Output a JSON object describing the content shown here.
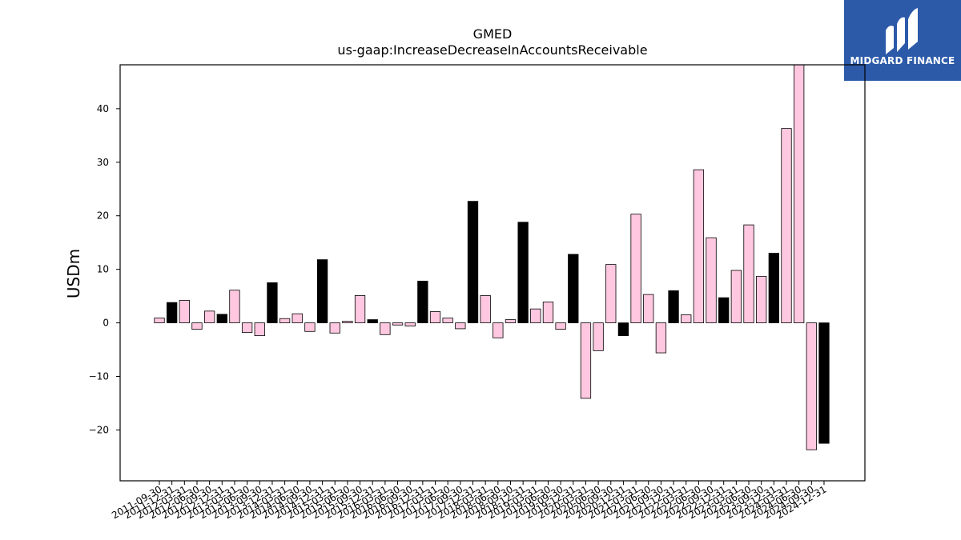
{
  "logo": {
    "text": "MIDGARD FINANCE",
    "bg_color": "#2c5aa9"
  },
  "chart_data": {
    "type": "bar",
    "title": "GMED",
    "subtitle": "us-gaap:IncreaseDecreaseInAccountsReceivable",
    "ylabel": "USDm",
    "xlabel": "",
    "ylim": [
      -29.5,
      48.2
    ],
    "yticks": [
      -20,
      -10,
      0,
      10,
      20,
      30,
      40
    ],
    "colors": {
      "default": "#ffc8e0",
      "highlight": "#000000",
      "edge": "#000000"
    },
    "categories": [
      "2011-09-30",
      "2011-12-31",
      "2012-03-31",
      "2012-06-30",
      "2012-09-30",
      "2012-12-31",
      "2013-03-31",
      "2013-06-30",
      "2013-09-30",
      "2013-12-31",
      "2014-03-31",
      "2014-06-30",
      "2014-09-30",
      "2014-12-31",
      "2015-03-31",
      "2015-06-30",
      "2015-09-30",
      "2015-12-31",
      "2016-03-31",
      "2016-06-30",
      "2016-09-30",
      "2016-12-31",
      "2017-03-31",
      "2017-06-30",
      "2017-09-30",
      "2017-12-31",
      "2018-03-31",
      "2018-06-30",
      "2018-09-30",
      "2018-12-31",
      "2019-03-31",
      "2019-06-30",
      "2019-09-30",
      "2019-12-31",
      "2020-03-31",
      "2020-06-30",
      "2020-09-30",
      "2020-12-31",
      "2021-03-31",
      "2021-06-30",
      "2021-09-30",
      "2021-12-31",
      "2022-03-31",
      "2022-06-30",
      "2022-09-30",
      "2022-12-31",
      "2023-03-31",
      "2023-06-30",
      "2023-09-30",
      "2023-12-31",
      "2024-03-31",
      "2024-06-30",
      "2024-09-30",
      "2024-12-31"
    ],
    "values": [
      0.9,
      3.8,
      4.2,
      -1.2,
      2.2,
      1.6,
      6.1,
      -1.8,
      -2.4,
      7.5,
      0.8,
      1.7,
      -1.6,
      11.8,
      -1.9,
      0.3,
      5.1,
      0.6,
      -2.2,
      -0.4,
      -0.6,
      7.8,
      2.1,
      0.9,
      -1.1,
      22.7,
      5.1,
      -2.8,
      0.6,
      18.8,
      2.6,
      3.9,
      -1.2,
      12.8,
      -14.1,
      -5.2,
      10.9,
      -2.4,
      20.3,
      5.3,
      -5.6,
      6.0,
      1.5,
      28.6,
      15.9,
      4.7,
      9.8,
      18.3,
      8.7,
      13.0,
      36.3,
      48.2,
      -23.7,
      -22.5
    ],
    "highlighted": [
      false,
      true,
      false,
      false,
      false,
      true,
      false,
      false,
      false,
      true,
      false,
      false,
      false,
      true,
      false,
      false,
      false,
      true,
      false,
      false,
      false,
      true,
      false,
      false,
      false,
      true,
      false,
      false,
      false,
      true,
      false,
      false,
      false,
      true,
      false,
      false,
      false,
      true,
      false,
      false,
      false,
      true,
      false,
      false,
      false,
      true,
      false,
      false,
      false,
      true,
      false,
      false,
      false,
      true
    ]
  }
}
